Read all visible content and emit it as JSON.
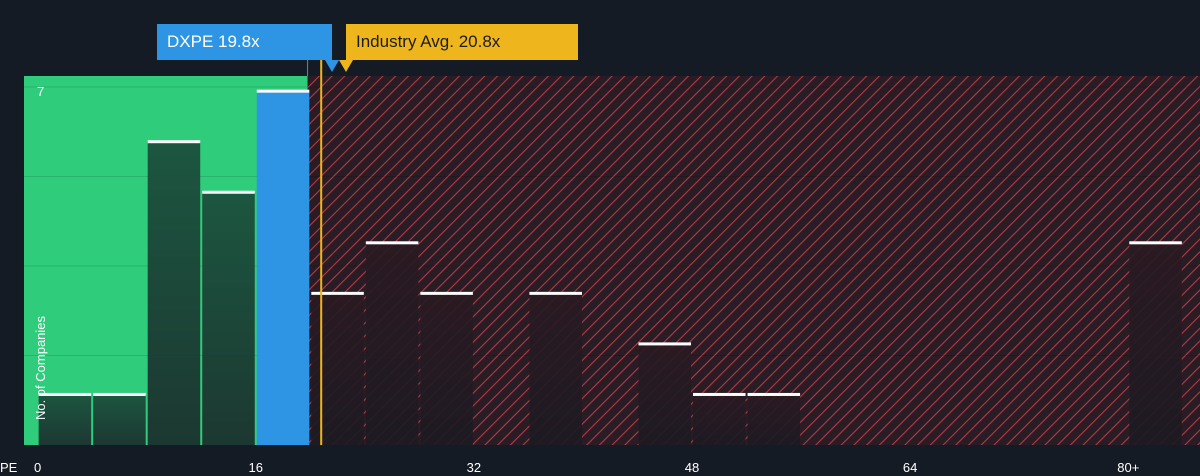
{
  "colors": {
    "background": "#151b24",
    "below_average_region": "#2fcc7b",
    "above_average_region": "#7a2530",
    "company_bar": "#2d95e4",
    "industry_line": "#efb51d",
    "bar_fill": "#1f4a3a",
    "bar_cap": "#ffffff"
  },
  "callouts": {
    "company": "DXPE 19.8x",
    "industry": "Industry Avg. 20.8x"
  },
  "chart_data": {
    "type": "bar",
    "xlabel": "PE",
    "ylabel": "No. of Companies",
    "x_ticks": [
      "0",
      "16",
      "32",
      "48",
      "64",
      "80+"
    ],
    "x_tick_values": [
      0,
      16,
      32,
      48,
      64,
      80
    ],
    "y_ticks": [
      "7"
    ],
    "y_tick_values": [
      7
    ],
    "xlim": [
      -1,
      83.5
    ],
    "ylim": [
      0,
      7.3
    ],
    "bin_width": 4,
    "bins": [
      {
        "x0": 0,
        "value": 1
      },
      {
        "x0": 4,
        "value": 1
      },
      {
        "x0": 8,
        "value": 6
      },
      {
        "x0": 12,
        "value": 5
      },
      {
        "x0": 16,
        "value": 7,
        "highlight": true
      },
      {
        "x0": 20,
        "value": 3
      },
      {
        "x0": 24,
        "value": 4
      },
      {
        "x0": 28,
        "value": 3
      },
      {
        "x0": 36,
        "value": 3
      },
      {
        "x0": 44,
        "value": 2
      },
      {
        "x0": 48,
        "value": 1
      },
      {
        "x0": 52,
        "value": 1
      },
      {
        "x0": 80,
        "value": 4
      }
    ],
    "company_pe": 19.8,
    "industry_avg_pe": 20.8
  }
}
